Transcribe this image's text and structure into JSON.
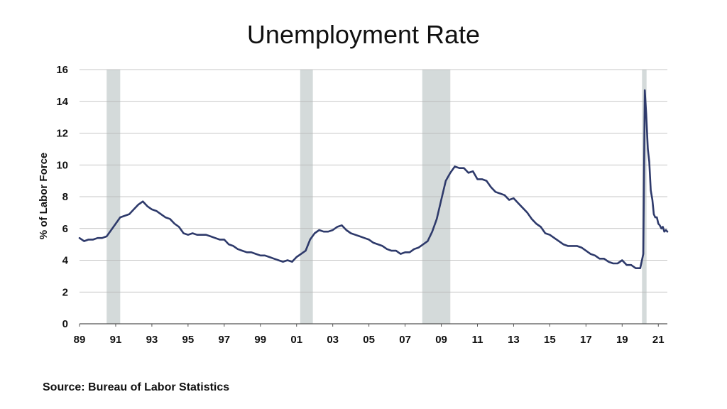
{
  "chart_data": {
    "type": "line",
    "title": "Unemployment Rate",
    "xlabel": "",
    "ylabel": "% of Labor Force",
    "ylim": [
      0,
      16
    ],
    "yticks": [
      0,
      2,
      4,
      6,
      8,
      10,
      12,
      14,
      16
    ],
    "xlim": [
      1989.0,
      2021.5
    ],
    "xticks": [
      {
        "value": 1989,
        "label": "89"
      },
      {
        "value": 1991,
        "label": "91"
      },
      {
        "value": 1993,
        "label": "93"
      },
      {
        "value": 1995,
        "label": "95"
      },
      {
        "value": 1997,
        "label": "97"
      },
      {
        "value": 1999,
        "label": "99"
      },
      {
        "value": 2001,
        "label": "01"
      },
      {
        "value": 2003,
        "label": "03"
      },
      {
        "value": 2005,
        "label": "05"
      },
      {
        "value": 2007,
        "label": "07"
      },
      {
        "value": 2009,
        "label": "09"
      },
      {
        "value": 2011,
        "label": "11"
      },
      {
        "value": 2013,
        "label": "13"
      },
      {
        "value": 2015,
        "label": "15"
      },
      {
        "value": 2017,
        "label": "17"
      },
      {
        "value": 2019,
        "label": "19"
      },
      {
        "value": 2021,
        "label": "21"
      }
    ],
    "grid": true,
    "recessions": [
      {
        "start": 1990.5,
        "end": 1991.25
      },
      {
        "start": 2001.2,
        "end": 2001.9
      },
      {
        "start": 2007.95,
        "end": 2009.5
      },
      {
        "start": 2020.1,
        "end": 2020.35
      }
    ],
    "series": [
      {
        "color": "#2e3a6b",
        "points": [
          [
            1989.0,
            5.4
          ],
          [
            1989.25,
            5.2
          ],
          [
            1989.5,
            5.3
          ],
          [
            1989.75,
            5.3
          ],
          [
            1990.0,
            5.4
          ],
          [
            1990.25,
            5.4
          ],
          [
            1990.5,
            5.5
          ],
          [
            1990.75,
            5.9
          ],
          [
            1991.0,
            6.3
          ],
          [
            1991.25,
            6.7
          ],
          [
            1991.5,
            6.8
          ],
          [
            1991.75,
            6.9
          ],
          [
            1992.0,
            7.2
          ],
          [
            1992.25,
            7.5
          ],
          [
            1992.5,
            7.7
          ],
          [
            1992.75,
            7.4
          ],
          [
            1993.0,
            7.2
          ],
          [
            1993.25,
            7.1
          ],
          [
            1993.5,
            6.9
          ],
          [
            1993.75,
            6.7
          ],
          [
            1994.0,
            6.6
          ],
          [
            1994.25,
            6.3
          ],
          [
            1994.5,
            6.1
          ],
          [
            1994.75,
            5.7
          ],
          [
            1995.0,
            5.6
          ],
          [
            1995.25,
            5.7
          ],
          [
            1995.5,
            5.6
          ],
          [
            1995.75,
            5.6
          ],
          [
            1996.0,
            5.6
          ],
          [
            1996.25,
            5.5
          ],
          [
            1996.5,
            5.4
          ],
          [
            1996.75,
            5.3
          ],
          [
            1997.0,
            5.3
          ],
          [
            1997.25,
            5.0
          ],
          [
            1997.5,
            4.9
          ],
          [
            1997.75,
            4.7
          ],
          [
            1998.0,
            4.6
          ],
          [
            1998.25,
            4.5
          ],
          [
            1998.5,
            4.5
          ],
          [
            1998.75,
            4.4
          ],
          [
            1999.0,
            4.3
          ],
          [
            1999.25,
            4.3
          ],
          [
            1999.5,
            4.2
          ],
          [
            1999.75,
            4.1
          ],
          [
            2000.0,
            4.0
          ],
          [
            2000.25,
            3.9
          ],
          [
            2000.5,
            4.0
          ],
          [
            2000.75,
            3.9
          ],
          [
            2001.0,
            4.2
          ],
          [
            2001.25,
            4.4
          ],
          [
            2001.5,
            4.6
          ],
          [
            2001.75,
            5.3
          ],
          [
            2002.0,
            5.7
          ],
          [
            2002.25,
            5.9
          ],
          [
            2002.5,
            5.8
          ],
          [
            2002.75,
            5.8
          ],
          [
            2003.0,
            5.9
          ],
          [
            2003.25,
            6.1
          ],
          [
            2003.5,
            6.2
          ],
          [
            2003.75,
            5.9
          ],
          [
            2004.0,
            5.7
          ],
          [
            2004.25,
            5.6
          ],
          [
            2004.5,
            5.5
          ],
          [
            2004.75,
            5.4
          ],
          [
            2005.0,
            5.3
          ],
          [
            2005.25,
            5.1
          ],
          [
            2005.5,
            5.0
          ],
          [
            2005.75,
            4.9
          ],
          [
            2006.0,
            4.7
          ],
          [
            2006.25,
            4.6
          ],
          [
            2006.5,
            4.6
          ],
          [
            2006.75,
            4.4
          ],
          [
            2007.0,
            4.5
          ],
          [
            2007.25,
            4.5
          ],
          [
            2007.5,
            4.7
          ],
          [
            2007.75,
            4.8
          ],
          [
            2008.0,
            5.0
          ],
          [
            2008.25,
            5.2
          ],
          [
            2008.5,
            5.8
          ],
          [
            2008.75,
            6.6
          ],
          [
            2009.0,
            7.8
          ],
          [
            2009.25,
            9.0
          ],
          [
            2009.5,
            9.5
          ],
          [
            2009.75,
            9.9
          ],
          [
            2010.0,
            9.8
          ],
          [
            2010.25,
            9.8
          ],
          [
            2010.5,
            9.5
          ],
          [
            2010.75,
            9.6
          ],
          [
            2011.0,
            9.1
          ],
          [
            2011.25,
            9.1
          ],
          [
            2011.5,
            9.0
          ],
          [
            2011.75,
            8.6
          ],
          [
            2012.0,
            8.3
          ],
          [
            2012.25,
            8.2
          ],
          [
            2012.5,
            8.1
          ],
          [
            2012.75,
            7.8
          ],
          [
            2013.0,
            7.9
          ],
          [
            2013.25,
            7.6
          ],
          [
            2013.5,
            7.3
          ],
          [
            2013.75,
            7.0
          ],
          [
            2014.0,
            6.6
          ],
          [
            2014.25,
            6.3
          ],
          [
            2014.5,
            6.1
          ],
          [
            2014.75,
            5.7
          ],
          [
            2015.0,
            5.6
          ],
          [
            2015.25,
            5.4
          ],
          [
            2015.5,
            5.2
          ],
          [
            2015.75,
            5.0
          ],
          [
            2016.0,
            4.9
          ],
          [
            2016.25,
            4.9
          ],
          [
            2016.5,
            4.9
          ],
          [
            2016.75,
            4.8
          ],
          [
            2017.0,
            4.6
          ],
          [
            2017.25,
            4.4
          ],
          [
            2017.5,
            4.3
          ],
          [
            2017.75,
            4.1
          ],
          [
            2018.0,
            4.1
          ],
          [
            2018.25,
            3.9
          ],
          [
            2018.5,
            3.8
          ],
          [
            2018.75,
            3.8
          ],
          [
            2019.0,
            4.0
          ],
          [
            2019.25,
            3.7
          ],
          [
            2019.5,
            3.7
          ],
          [
            2019.75,
            3.5
          ],
          [
            2020.0,
            3.5
          ],
          [
            2020.17,
            4.4
          ],
          [
            2020.25,
            14.7
          ],
          [
            2020.33,
            13.2
          ],
          [
            2020.42,
            11.0
          ],
          [
            2020.5,
            10.2
          ],
          [
            2020.58,
            8.4
          ],
          [
            2020.67,
            7.8
          ],
          [
            2020.75,
            6.9
          ],
          [
            2020.83,
            6.7
          ],
          [
            2020.92,
            6.7
          ],
          [
            2021.0,
            6.3
          ],
          [
            2021.08,
            6.2
          ],
          [
            2021.17,
            6.0
          ],
          [
            2021.25,
            6.1
          ],
          [
            2021.33,
            5.8
          ],
          [
            2021.42,
            5.9
          ],
          [
            2021.5,
            5.8
          ]
        ]
      }
    ]
  },
  "source_note": "Source: Bureau of Labor Statistics"
}
